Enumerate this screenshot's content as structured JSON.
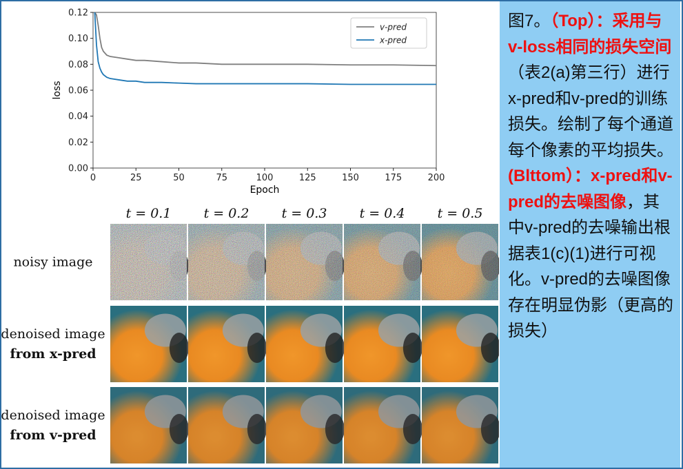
{
  "chart_data": {
    "type": "line",
    "xlabel": "Epoch",
    "ylabel": "loss",
    "x": [
      1,
      2,
      3,
      4,
      5,
      6,
      8,
      10,
      15,
      20,
      25,
      30,
      40,
      50,
      60,
      75,
      100,
      125,
      150,
      175,
      200
    ],
    "series": [
      {
        "name": "v-pred",
        "color": "#7f7f7f",
        "values": [
          0.12,
          0.118,
          0.11,
          0.1,
          0.093,
          0.09,
          0.087,
          0.086,
          0.085,
          0.084,
          0.083,
          0.083,
          0.082,
          0.081,
          0.081,
          0.08,
          0.08,
          0.08,
          0.0795,
          0.0795,
          0.079
        ]
      },
      {
        "name": "x-pred",
        "color": "#1f77b4",
        "values": [
          0.12,
          0.095,
          0.082,
          0.077,
          0.074,
          0.072,
          0.07,
          0.069,
          0.068,
          0.067,
          0.067,
          0.066,
          0.066,
          0.0655,
          0.065,
          0.065,
          0.065,
          0.065,
          0.0645,
          0.0645,
          0.0645
        ]
      }
    ],
    "xlim": [
      0,
      200
    ],
    "xticks": [
      0,
      25,
      50,
      75,
      100,
      125,
      150,
      175,
      200
    ],
    "ylim": [
      0,
      0.12
    ],
    "yticks": [
      {
        "value": 0,
        "label": "0.00"
      },
      {
        "value": 0.02,
        "label": "0.02"
      },
      {
        "value": 0.04,
        "label": "0.04"
      },
      {
        "value": 0.06,
        "label": "0.06"
      },
      {
        "value": 0.08,
        "label": "0.08"
      },
      {
        "value": 0.1,
        "label": "0.10"
      },
      {
        "value": 0.12,
        "label": "0.12"
      }
    ],
    "legend": "upper right"
  },
  "figure": {
    "columns": [
      "t = 0.1",
      "t = 0.2",
      "t = 0.3",
      "t = 0.4",
      "t = 0.5"
    ],
    "rows": [
      [
        "noisy image"
      ],
      [
        "denoised image",
        "from x-pred"
      ],
      [
        "denoised image",
        "from v-pred"
      ]
    ]
  },
  "caption": [
    {
      "text": "图7。",
      "emphasis": false
    },
    {
      "text": "（Top）：采用与v-loss相同的损失空间",
      "emphasis": true
    },
    {
      "text": "（表2(a)第三行）进行x-pred和v-pred的训练损失。绘制了每个通道每个像素的平均损失。",
      "emphasis": false
    },
    {
      "text": "(Blttom）：x-pred和v-pred的去噪图像",
      "emphasis": true
    },
    {
      "text": "，其中v-pred的去噪输出根据表1(c)(1)进行可视化。v-pred的去噪图像存在明显伪影（更高的损失）",
      "emphasis": false
    }
  ]
}
